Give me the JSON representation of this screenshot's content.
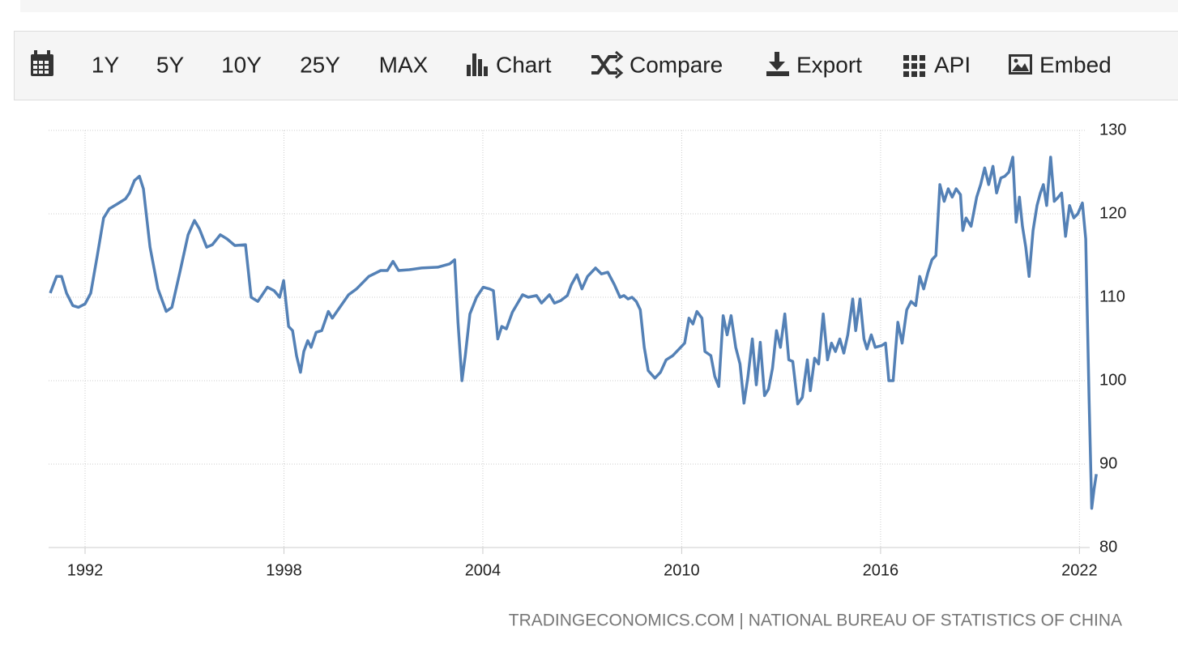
{
  "toolbar": {
    "ranges": [
      "1Y",
      "5Y",
      "10Y",
      "25Y",
      "MAX"
    ],
    "tools": [
      "Chart",
      "Compare",
      "Export",
      "API",
      "Embed"
    ]
  },
  "source": "TRADINGECONOMICS.COM | NATIONAL BUREAU OF STATISTICS OF CHINA",
  "chart_data": {
    "type": "line",
    "color": "#5481b6",
    "grid": true,
    "yaxis_position": "right",
    "xlim": [
      1990.9,
      2022.7
    ],
    "ylim": [
      80,
      130
    ],
    "xticks": [
      1992,
      1998,
      2004,
      2010,
      2016,
      2022
    ],
    "yticks": [
      80,
      90,
      100,
      110,
      120,
      130
    ],
    "x": [
      1990.95,
      1991.14,
      1991.29,
      1991.44,
      1991.63,
      1991.8,
      1992.0,
      1992.17,
      1992.37,
      1992.56,
      1992.73,
      1992.98,
      1993.22,
      1993.34,
      1993.49,
      1993.64,
      1993.76,
      1993.96,
      1994.2,
      1994.45,
      1994.62,
      1994.86,
      1995.11,
      1995.3,
      1995.45,
      1995.67,
      1995.84,
      1996.08,
      1996.28,
      1996.52,
      1996.84,
      1997.01,
      1997.21,
      1997.5,
      1997.7,
      1997.87,
      1997.99,
      1998.14,
      1998.26,
      1998.38,
      1998.5,
      1998.6,
      1998.72,
      1998.82,
      1998.97,
      1999.14,
      1999.34,
      1999.46,
      1999.6,
      1999.95,
      2000.19,
      2000.56,
      2000.92,
      2001.12,
      2001.29,
      2001.46,
      2001.78,
      2002.15,
      2002.64,
      2003.0,
      2003.15,
      2003.25,
      2003.37,
      2003.47,
      2003.61,
      2003.81,
      2004.01,
      2004.2,
      2004.32,
      2004.45,
      2004.57,
      2004.71,
      2004.89,
      2005.2,
      2005.37,
      2005.62,
      2005.77,
      2006.01,
      2006.16,
      2006.35,
      2006.55,
      2006.67,
      2006.84,
      2006.99,
      2007.16,
      2007.4,
      2007.58,
      2007.77,
      2007.97,
      2008.14,
      2008.26,
      2008.38,
      2008.5,
      2008.63,
      2008.75,
      2008.87,
      2008.99,
      2009.19,
      2009.36,
      2009.53,
      2009.73,
      2009.97,
      2010.09,
      2010.22,
      2010.34,
      2010.46,
      2010.61,
      2010.7,
      2010.88,
      2011.0,
      2011.12,
      2011.25,
      2011.37,
      2011.49,
      2011.63,
      2011.76,
      2011.88,
      2012.0,
      2012.13,
      2012.25,
      2012.37,
      2012.5,
      2012.62,
      2012.74,
      2012.86,
      2012.98,
      2013.11,
      2013.23,
      2013.35,
      2013.5,
      2013.64,
      2013.79,
      2013.88,
      2014.01,
      2014.13,
      2014.27,
      2014.4,
      2014.52,
      2014.64,
      2014.77,
      2014.89,
      2015.01,
      2015.16,
      2015.25,
      2015.38,
      2015.5,
      2015.59,
      2015.72,
      2015.84,
      2016.03,
      2016.15,
      2016.25,
      2016.38,
      2016.52,
      2016.65,
      2016.79,
      2016.92,
      2017.06,
      2017.18,
      2017.3,
      2017.43,
      2017.55,
      2017.67,
      2017.79,
      2017.92,
      2018.04,
      2018.16,
      2018.28,
      2018.41,
      2018.48,
      2018.58,
      2018.73,
      2018.9,
      2019.02,
      2019.14,
      2019.26,
      2019.39,
      2019.5,
      2019.63,
      2019.75,
      2019.87,
      2019.99,
      2020.09,
      2020.19,
      2020.28,
      2020.38,
      2020.48,
      2020.6,
      2020.72,
      2020.82,
      2020.91,
      2021.01,
      2021.13,
      2021.24,
      2021.36,
      2021.46,
      2021.58,
      2021.7,
      2021.83,
      2021.95,
      2022.09,
      2022.19,
      2022.29,
      2022.37,
      2022.44,
      2022.51
    ],
    "values": [
      110.5,
      112.5,
      112.5,
      110.5,
      109,
      108.8,
      109.2,
      110.5,
      115,
      119.5,
      120.6,
      121.2,
      121.8,
      122.5,
      124,
      124.5,
      123,
      116,
      111,
      108.3,
      108.8,
      113,
      117.5,
      119.2,
      118.2,
      116,
      116.3,
      117.5,
      117,
      116.2,
      116.3,
      110,
      109.5,
      111.2,
      110.8,
      110,
      112,
      106.5,
      106,
      103,
      101,
      103.5,
      104.8,
      104,
      105.8,
      106,
      108.3,
      107.5,
      108.3,
      110.3,
      111,
      112.5,
      113.2,
      113.2,
      114.3,
      113.2,
      113.3,
      113.5,
      113.6,
      114,
      114.5,
      107,
      100,
      103,
      108,
      110,
      111.2,
      111,
      110.8,
      105,
      106.5,
      106.2,
      108.2,
      110.3,
      110,
      110.2,
      109.3,
      110.3,
      109.3,
      109.6,
      110.2,
      111.5,
      112.7,
      111,
      112.5,
      113.5,
      112.8,
      113,
      111.5,
      110,
      110.2,
      109.8,
      110,
      109.5,
      108.5,
      104,
      101.2,
      100.3,
      101,
      102.5,
      103,
      104,
      104.5,
      107.5,
      106.8,
      108.3,
      107.5,
      103.5,
      103,
      100.5,
      99.3,
      107.8,
      105.5,
      107.8,
      104,
      102,
      97.3,
      100.5,
      105,
      99.5,
      104.6,
      98.2,
      99,
      101.5,
      106,
      104,
      108,
      102.5,
      102.3,
      97.2,
      98,
      102.5,
      98.8,
      102.7,
      102,
      108,
      102.5,
      104.5,
      103.5,
      105,
      103.3,
      105.5,
      109.8,
      106,
      109.8,
      105,
      103.8,
      105.5,
      104,
      104.2,
      104.5,
      100,
      100,
      107,
      104.5,
      108.5,
      109.5,
      109,
      112.5,
      111,
      113,
      114.5,
      115,
      123.5,
      121.5,
      123,
      122,
      123,
      122.3,
      118,
      119.5,
      118.5,
      122,
      123.5,
      125.5,
      123.5,
      125.7,
      122.5,
      124.3,
      124.5,
      125,
      126.8,
      119,
      122,
      118.5,
      116,
      112.5,
      118,
      121,
      122.5,
      123.5,
      121,
      126.8,
      121.5,
      122,
      122.5,
      117.3,
      121,
      119.5,
      120,
      121.3,
      117,
      98,
      84.7,
      87,
      88.8
    ]
  }
}
